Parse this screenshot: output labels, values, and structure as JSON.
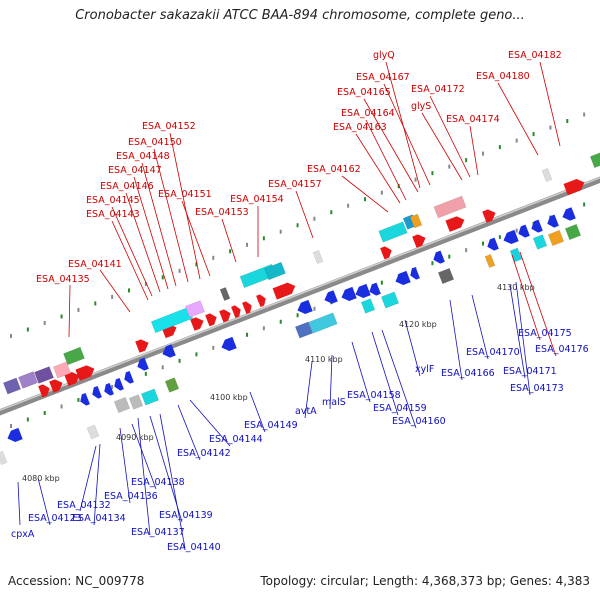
{
  "title": "Cronobacter sakazakii ATCC BAA-894 chromosome, complete geno...",
  "footer": {
    "accession": "Accession: NC_009778",
    "topology": "Topology: circular; Length: 4,368,373 bp; Genes: 4,383"
  },
  "scale_labels": [
    "4080 kbp",
    "4090 kbp",
    "4100 kbp",
    "4110 kbp",
    "4120 kbp",
    "4130 kbp"
  ],
  "top_labels": [
    "ESA_04135",
    "ESA_04141",
    "ESA_04143",
    "ESA_04145",
    "ESA_04146",
    "ESA_04147",
    "ESA_04148",
    "ESA_04150",
    "ESA_04152",
    "ESA_04151",
    "ESA_04153",
    "ESA_04154",
    "ESA_04157",
    "ESA_04162",
    "ESA_04163",
    "ESA_04164",
    "ESA_04165",
    "glyQ",
    "ESA_04167",
    "glyS",
    "ESA_04172",
    "ESA_04174",
    "ESA_04180",
    "ESA_04182"
  ],
  "bottom_labels": [
    "cpxA",
    "ESA_04123",
    "ESA_04132",
    "ESA_04134",
    "ESA_04136",
    "ESA_04138",
    "ESA_04137",
    "ESA_04139",
    "ESA_04140",
    "ESA_04142",
    "ESA_04144",
    "ESA_04149",
    "avtA",
    "malS",
    "ESA_04158",
    "ESA_04159",
    "ESA_04160",
    "xylF",
    "ESA_04166",
    "ESA_04170",
    "ESA_04171",
    "ESA_04173",
    "ESA_04175",
    "ESA_04176"
  ],
  "colors": {
    "forward_gene": "#e81818",
    "reverse_gene": "#1a2ee0",
    "forward_label": "#cc0000",
    "reverse_label": "#1010c0",
    "backbone": "#9a9a9a",
    "rna": "#22c8d8"
  }
}
